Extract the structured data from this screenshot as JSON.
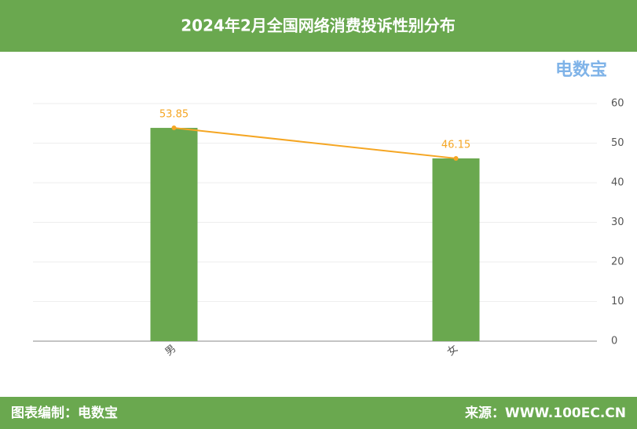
{
  "chart_data": {
    "type": "bar",
    "title": "2024年2月全国网络消费投诉性别分布",
    "categories": [
      "男",
      "女"
    ],
    "values": [
      53.85,
      46.15
    ],
    "color": "#6aa84f",
    "line_color": "#f5a623",
    "ylim": [
      0,
      60
    ],
    "yticks": [
      0,
      10,
      20,
      30,
      40,
      50,
      60
    ],
    "grid": true,
    "logo": "电数宝",
    "footer_left": "图表编制：电数宝",
    "footer_right": "来源：WWW.100EC.CN"
  }
}
